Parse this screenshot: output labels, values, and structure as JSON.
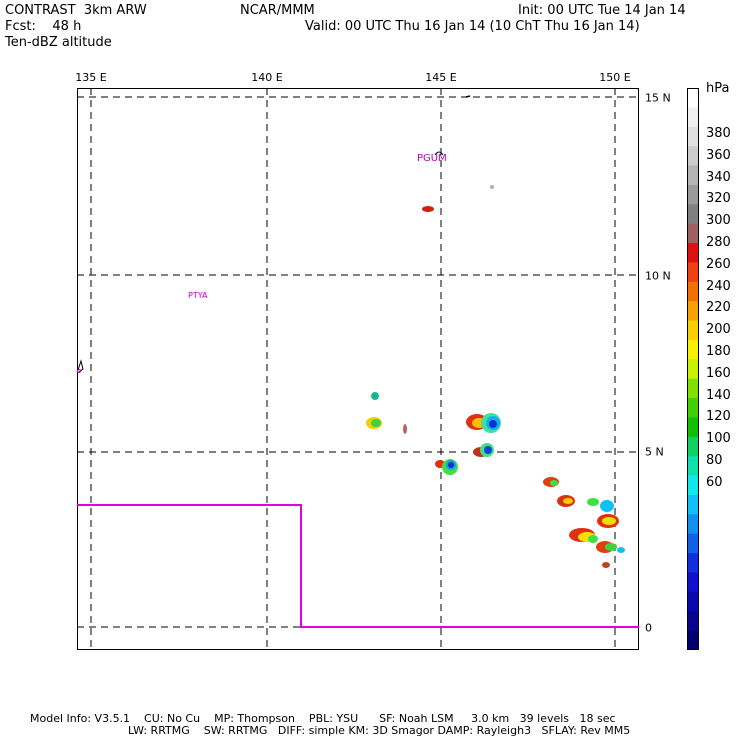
{
  "header": {
    "left_line1": "CONTRAST  3km ARW",
    "left_line2": "Fcst:    48 h",
    "left_line3": "Ten-dBZ altitude",
    "center": "NCAR/MMM",
    "init": "Init: 00 UTC Tue 14 Jan 14",
    "valid": "Valid: 00 UTC Thu 16 Jan 14 (10 ChT Thu 16 Jan 14)"
  },
  "axes": {
    "lon_labels": [
      "135 E",
      "140 E",
      "145 E",
      "150 E"
    ],
    "lat_labels": [
      "15 N",
      "10 N",
      "5 N",
      "0"
    ]
  },
  "places": {
    "guam": "PGUM",
    "palau": "PTYA"
  },
  "colorbar": {
    "unit": "hPa",
    "labels": [
      "380",
      "360",
      "340",
      "320",
      "300",
      "280",
      "260",
      "240",
      "220",
      "200",
      "180",
      "160",
      "140",
      "120",
      "100",
      "80",
      "60"
    ],
    "colors": [
      "#ffffff",
      "#f0f0f0",
      "#e0e0e0",
      "#cccccc",
      "#b4b4b4",
      "#9a9a9a",
      "#808080",
      "#a06060",
      "#e01010",
      "#f04010",
      "#f07000",
      "#f8a000",
      "#f8d000",
      "#f8f000",
      "#c8f000",
      "#80e000",
      "#40d000",
      "#10c000",
      "#10d060",
      "#10e0b0",
      "#10e8e8",
      "#10c0f8",
      "#1090f0",
      "#1060e8",
      "#1030e0",
      "#1010d0",
      "#0808b0",
      "#050590",
      "#000070"
    ]
  },
  "footer": {
    "line1": "Model Info: V3.5.1    CU: No Cu    MP: Thompson    PBL: YSU      SF: Noah LSM     3.0 km   39 levels   18 sec",
    "line2": "LW: RRTMG    SW: RRTMG   DIFF: simple KM: 3D Smagor DAMP: Rayleigh3   SFLAY: Rev MM5"
  }
}
